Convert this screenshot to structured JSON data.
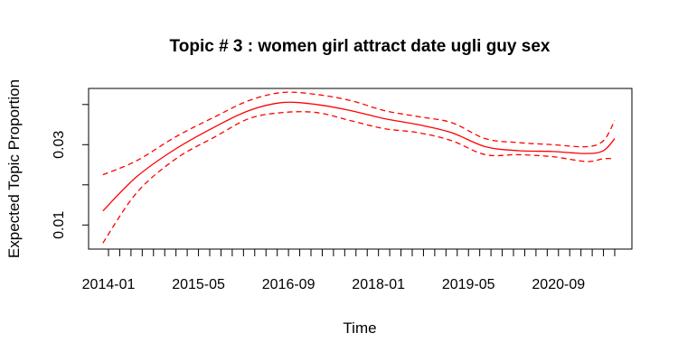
{
  "chart_data": {
    "type": "line",
    "title": "Topic # 3 :  women girl attract date ugli guy sex",
    "xlabel": "Time",
    "ylabel": "Expected Topic Proportion",
    "ylim": [
      0.004,
      0.044
    ],
    "y_ticks": [
      0.01,
      0.02,
      0.03,
      0.04
    ],
    "y_tick_labels": [
      "0.01",
      "",
      "0.03",
      ""
    ],
    "x_ticks": [
      "2014-01",
      "2014-03",
      "2014-05",
      "2014-07",
      "2014-09",
      "2014-11",
      "2015-01",
      "2015-03",
      "2015-05",
      "2015-07",
      "2015-09",
      "2015-11",
      "2016-01",
      "2016-03",
      "2016-05",
      "2016-07",
      "2016-09",
      "2016-11",
      "2017-01",
      "2017-03",
      "2017-05",
      "2017-07",
      "2017-09",
      "2017-11",
      "2018-01",
      "2018-03",
      "2018-05",
      "2018-07",
      "2018-09",
      "2018-11",
      "2019-01",
      "2019-03",
      "2019-05",
      "2019-07",
      "2019-09",
      "2019-11",
      "2020-01",
      "2020-03",
      "2020-05",
      "2020-07",
      "2020-09",
      "2020-11",
      "2021-01",
      "2021-03",
      "2021-05",
      "2021-07"
    ],
    "x_tick_labels": [
      "2014-01",
      "",
      "",
      "",
      "",
      "",
      "",
      "",
      "2015-05",
      "",
      "",
      "",
      "",
      "",
      "",
      "",
      "2016-09",
      "",
      "",
      "",
      "",
      "",
      "",
      "",
      "2018-01",
      "",
      "",
      "",
      "",
      "",
      "",
      "",
      "2019-05",
      "",
      "",
      "",
      "",
      "",
      "",
      "",
      "2020-09",
      "",
      "",
      "",
      "",
      ""
    ],
    "series": [
      {
        "role": "estimate",
        "color": "#ff0000",
        "dash": "solid",
        "x": [
          "2013-12",
          "2014-06",
          "2015-01",
          "2015-08",
          "2016-02",
          "2016-08",
          "2017-02",
          "2017-08",
          "2018-02",
          "2018-08",
          "2019-02",
          "2019-08",
          "2020-02",
          "2020-08",
          "2021-02",
          "2021-05",
          "2021-07"
        ],
        "values": [
          0.0135,
          0.022,
          0.029,
          0.0345,
          0.0385,
          0.0405,
          0.04,
          0.0385,
          0.0365,
          0.035,
          0.033,
          0.0295,
          0.0285,
          0.0283,
          0.0278,
          0.0285,
          0.0315
        ]
      },
      {
        "role": "upper",
        "color": "#ff0000",
        "dash": "dashed",
        "x": [
          "2013-12",
          "2014-06",
          "2015-01",
          "2015-08",
          "2016-02",
          "2016-08",
          "2017-02",
          "2017-08",
          "2018-02",
          "2018-08",
          "2019-02",
          "2019-08",
          "2020-02",
          "2020-08",
          "2021-02",
          "2021-05",
          "2021-07"
        ],
        "values": [
          0.0225,
          0.026,
          0.032,
          0.037,
          0.041,
          0.043,
          0.0425,
          0.041,
          0.0385,
          0.037,
          0.0355,
          0.0315,
          0.0305,
          0.03,
          0.0295,
          0.031,
          0.036
        ]
      },
      {
        "role": "lower",
        "color": "#ff0000",
        "dash": "dashed",
        "x": [
          "2013-12",
          "2014-06",
          "2015-01",
          "2015-08",
          "2016-02",
          "2016-08",
          "2017-02",
          "2017-08",
          "2018-02",
          "2018-08",
          "2019-02",
          "2019-08",
          "2020-02",
          "2020-08",
          "2021-02",
          "2021-05",
          "2021-07"
        ],
        "values": [
          0.0055,
          0.018,
          0.0265,
          0.032,
          0.0365,
          0.038,
          0.038,
          0.036,
          0.034,
          0.033,
          0.031,
          0.0275,
          0.0275,
          0.027,
          0.0258,
          0.0265,
          0.0265
        ]
      }
    ]
  }
}
